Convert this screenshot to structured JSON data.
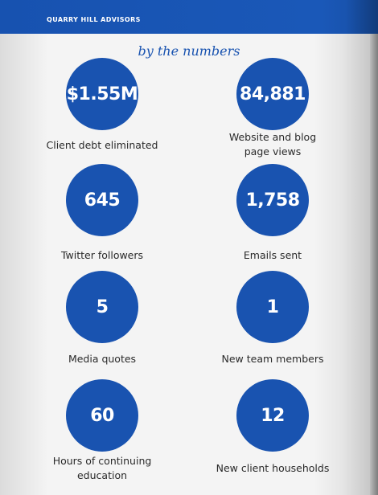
{
  "header": {
    "firm_name": "QUARRY HILL ADVISORS"
  },
  "section_title": "by the numbers",
  "stats": [
    {
      "value": "$1.55M",
      "label": "Client debt eliminated"
    },
    {
      "value": "84,881",
      "label": "Website and blog\npage views"
    },
    {
      "value": "645",
      "label": "Twitter followers"
    },
    {
      "value": "1,758",
      "label": "Emails sent"
    },
    {
      "value": "5",
      "label": "Media quotes"
    },
    {
      "value": "1",
      "label": "New team members"
    },
    {
      "value": "60",
      "label": "Hours of continuing\neducation"
    },
    {
      "value": "12",
      "label": "New client households"
    }
  ],
  "colors": {
    "brand_blue": "#1953b0",
    "header_text": "#ffffff",
    "label_text": "#2a2a2a"
  }
}
